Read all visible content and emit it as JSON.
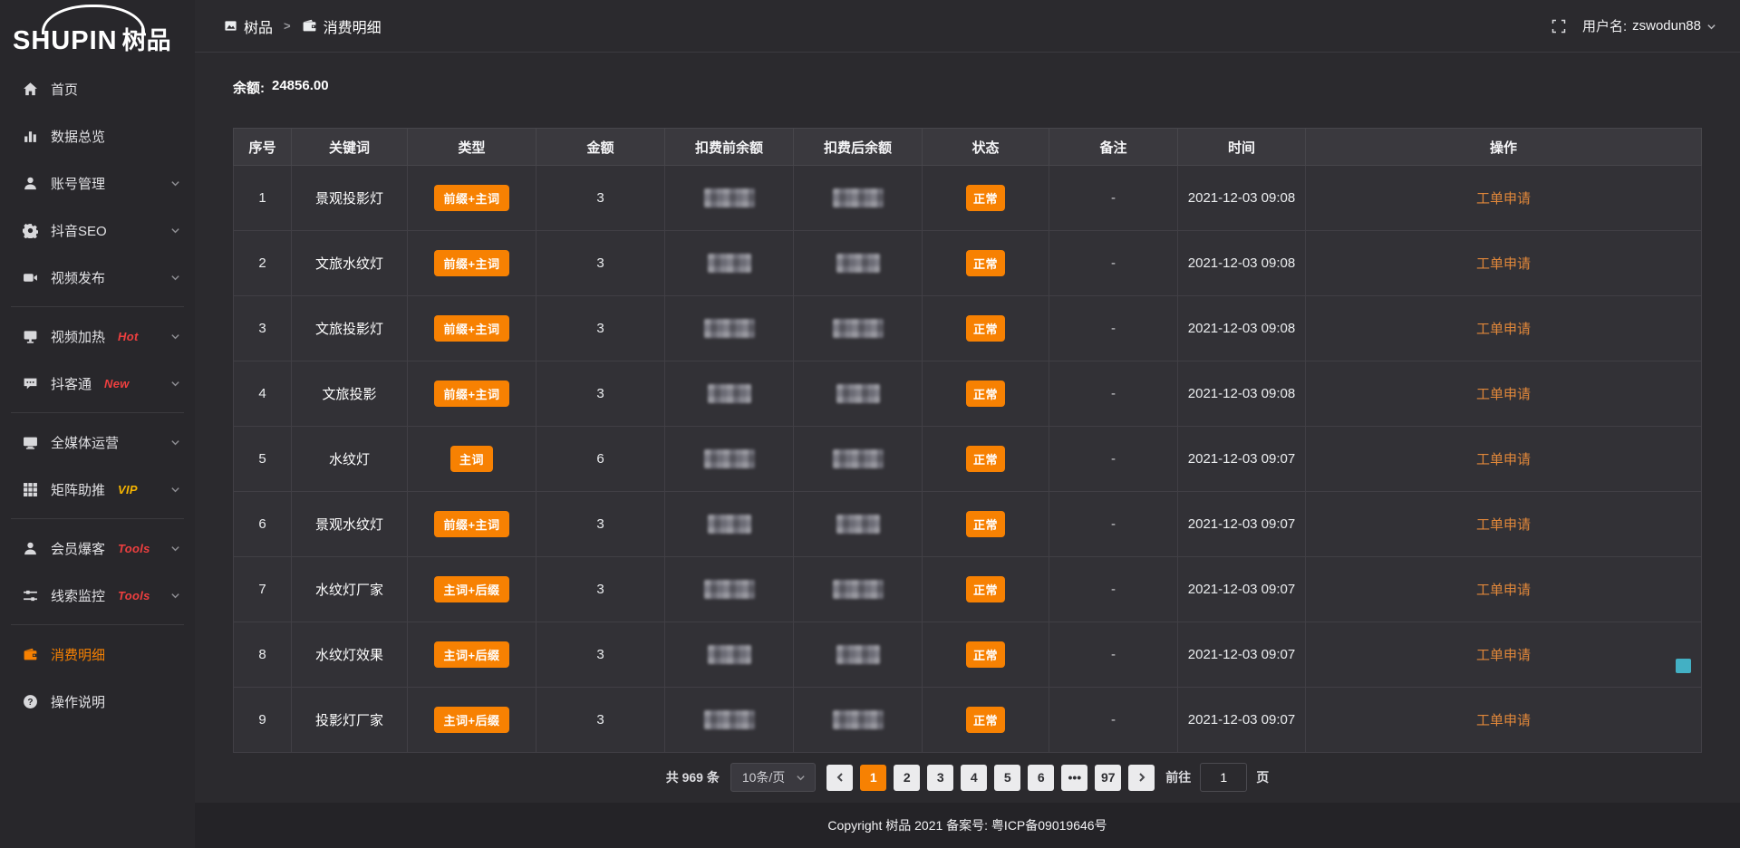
{
  "app": {
    "logo_latin": "SHUPIN",
    "logo_cn": "树品"
  },
  "topbar": {
    "breadcrumb": [
      {
        "label": "树品",
        "icon": "board-icon"
      },
      {
        "label": "消费明细",
        "icon": "wallet-icon"
      }
    ],
    "separator": ">",
    "username_label": "用户名:",
    "username": "zswodun88"
  },
  "sidebar": {
    "groups": [
      {
        "items": [
          {
            "id": "home",
            "icon": "home-icon",
            "label": "首页"
          },
          {
            "id": "data-overview",
            "icon": "bar-chart-icon",
            "label": "数据总览"
          },
          {
            "id": "account-management",
            "icon": "user-icon",
            "label": "账号管理",
            "chevron": true
          },
          {
            "id": "douyin-seo",
            "icon": "gear-icon",
            "label": "抖音SEO",
            "chevron": true
          },
          {
            "id": "video-publish",
            "icon": "video-icon",
            "label": "视频发布",
            "chevron": true
          }
        ]
      },
      {
        "items": [
          {
            "id": "video-heat",
            "icon": "screen-icon",
            "label": "视频加热",
            "badge": "Hot",
            "badge_color": "#ee3f3f",
            "chevron": true
          },
          {
            "id": "doukewtong",
            "icon": "chat-icon",
            "label": "抖客通",
            "badge": "New",
            "badge_color": "#ee3f3f",
            "chevron": true
          }
        ]
      },
      {
        "items": [
          {
            "id": "all-media-operation",
            "icon": "monitor-icon",
            "label": "全媒体运营",
            "chevron": true
          },
          {
            "id": "matrix-boost",
            "icon": "grid-icon",
            "label": "矩阵助推",
            "badge": "VIP",
            "badge_color": "#f7b500",
            "chevron": true
          }
        ]
      },
      {
        "items": [
          {
            "id": "member-baoke",
            "icon": "person-icon",
            "label": "会员爆客",
            "badge": "Tools",
            "badge_color": "#ee3f3f",
            "chevron": true
          },
          {
            "id": "clue-monitor",
            "icon": "sliders-icon",
            "label": "线索监控",
            "badge": "Tools",
            "badge_color": "#ee3f3f",
            "chevron": true
          }
        ]
      },
      {
        "items": [
          {
            "id": "consumption-detail",
            "icon": "wallet-icon",
            "label": "消费明细",
            "active": true
          },
          {
            "id": "operation-guide",
            "icon": "question-icon",
            "label": "操作说明"
          }
        ]
      }
    ]
  },
  "balance": {
    "label": "余额:",
    "value": "24856.00"
  },
  "table": {
    "columns": [
      "序号",
      "关键词",
      "类型",
      "金额",
      "扣费前余额",
      "扣费后余额",
      "状态",
      "备注",
      "时间",
      "操作"
    ],
    "rows": [
      {
        "index": "1",
        "keyword": "景观投影灯",
        "type": "前缀+主词",
        "amount": "3",
        "status": "正常",
        "note": "-",
        "time": "2021-12-03 09:08",
        "action": "工单申请"
      },
      {
        "index": "2",
        "keyword": "文旅水纹灯",
        "type": "前缀+主词",
        "amount": "3",
        "status": "正常",
        "note": "-",
        "time": "2021-12-03 09:08",
        "action": "工单申请"
      },
      {
        "index": "3",
        "keyword": "文旅投影灯",
        "type": "前缀+主词",
        "amount": "3",
        "status": "正常",
        "note": "-",
        "time": "2021-12-03 09:08",
        "action": "工单申请"
      },
      {
        "index": "4",
        "keyword": "文旅投影",
        "type": "前缀+主词",
        "amount": "3",
        "status": "正常",
        "note": "-",
        "time": "2021-12-03 09:08",
        "action": "工单申请"
      },
      {
        "index": "5",
        "keyword": "水纹灯",
        "type": "主词",
        "amount": "6",
        "status": "正常",
        "note": "-",
        "time": "2021-12-03 09:07",
        "action": "工单申请"
      },
      {
        "index": "6",
        "keyword": "景观水纹灯",
        "type": "前缀+主词",
        "amount": "3",
        "status": "正常",
        "note": "-",
        "time": "2021-12-03 09:07",
        "action": "工单申请"
      },
      {
        "index": "7",
        "keyword": "水纹灯厂家",
        "type": "主词+后缀",
        "amount": "3",
        "status": "正常",
        "note": "-",
        "time": "2021-12-03 09:07",
        "action": "工单申请"
      },
      {
        "index": "8",
        "keyword": "水纹灯效果",
        "type": "主词+后缀",
        "amount": "3",
        "status": "正常",
        "note": "-",
        "time": "2021-12-03 09:07",
        "action": "工单申请"
      },
      {
        "index": "9",
        "keyword": "投影灯厂家",
        "type": "主词+后缀",
        "amount": "3",
        "status": "正常",
        "note": "-",
        "time": "2021-12-03 09:07",
        "action": "工单申请"
      }
    ]
  },
  "pagination": {
    "total": "共 969 条",
    "page_size": "10条/页",
    "pages": [
      "1",
      "2",
      "3",
      "4",
      "5",
      "6",
      "•••",
      "97"
    ],
    "active_page": "1",
    "goto_label": "前往",
    "goto_value": "1",
    "goto_unit": "页"
  },
  "footer": {
    "copyright": "Copyright 树品 2021 备案号: 粤ICP备09019646号"
  },
  "colors": {
    "accent": "#f78102",
    "link": "#e0873a",
    "badge_red": "#ee3f3f",
    "badge_gold": "#f7b500"
  }
}
